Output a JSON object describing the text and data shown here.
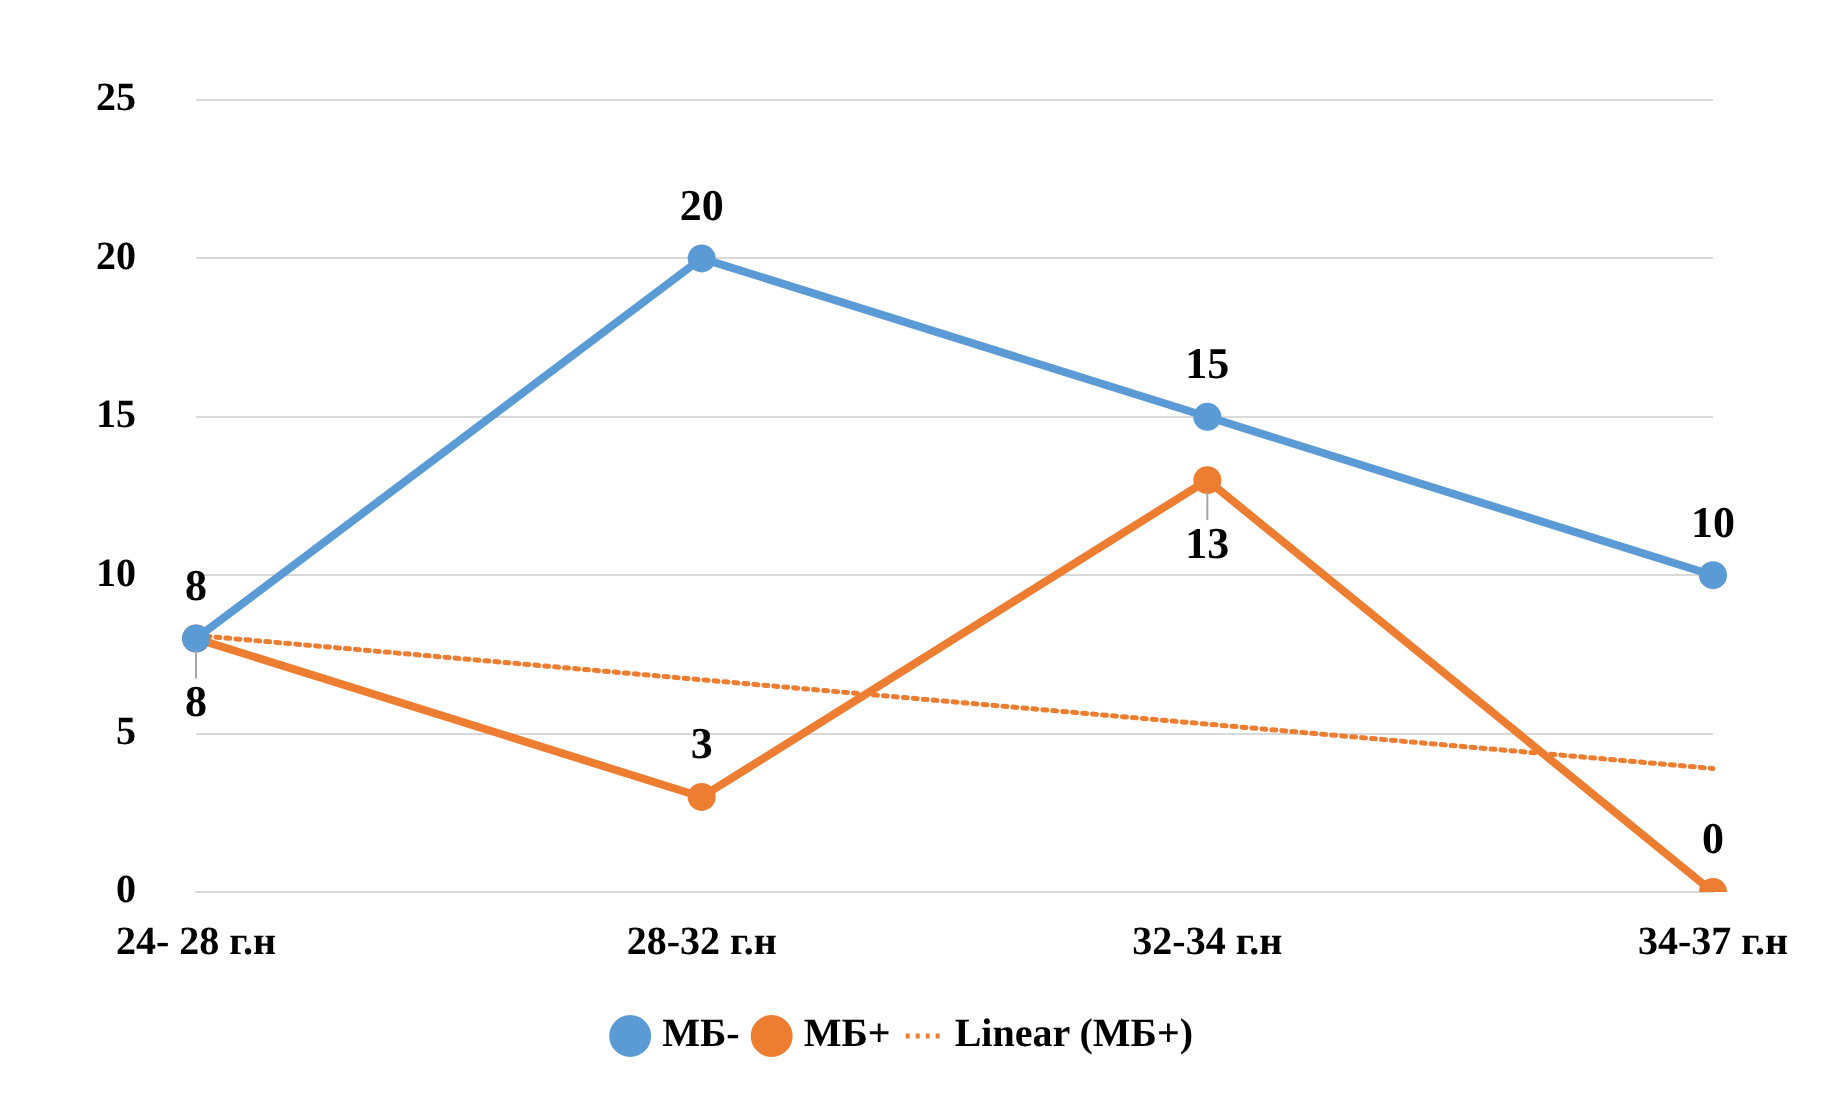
{
  "chart_data": {
    "type": "line",
    "categories": [
      "24- 28 г.н",
      "28-32 г.н",
      "32-34 г.н",
      "34-37 г.н"
    ],
    "series": [
      {
        "name": "МБ-",
        "color": "#5b9bd5",
        "values": [
          8,
          20,
          15,
          10
        ],
        "value_labels": [
          "8",
          "20",
          "15",
          "10"
        ]
      },
      {
        "name": "МБ+",
        "color": "#ed7d31",
        "values": [
          8,
          3,
          13,
          0
        ],
        "value_labels": [
          "8",
          "3",
          "13",
          "0"
        ]
      },
      {
        "name": "Linear (МБ+)",
        "color": "#ed7d31",
        "values": [
          8.1,
          6.7,
          5.3,
          3.9
        ],
        "line_style": "dotted",
        "marker": "none"
      }
    ],
    "ylim": [
      0,
      25
    ],
    "yticks": [
      0,
      5,
      10,
      15,
      20,
      25
    ],
    "grid": "y",
    "legend": "bottom",
    "marker": "circle",
    "line_style": "solid"
  }
}
